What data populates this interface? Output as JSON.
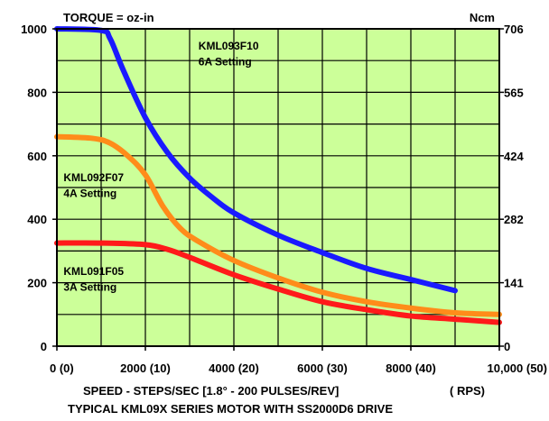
{
  "chart_data": {
    "type": "line",
    "title": "",
    "header_left": "TORQUE = oz-in",
    "header_right": "Ncm",
    "xlabel": "SPEED - STEPS/SEC [1.8° - 200 PULSES/REV]",
    "xlabel_right": "( RPS)",
    "caption": "TYPICAL KML09X SERIES MOTOR WITH SS2000D6 DRIVE",
    "xlim": [
      0,
      10000
    ],
    "ylim": [
      0,
      1000
    ],
    "grid": true,
    "background_color": "#ccff99",
    "x_ticks": [
      {
        "value": 0,
        "label": "0 (0)"
      },
      {
        "value": 2000,
        "label": "2000 (10)"
      },
      {
        "value": 4000,
        "label": "4000 (20)"
      },
      {
        "value": 6000,
        "label": "6000 (30)"
      },
      {
        "value": 8000,
        "label": "8000 (40)"
      },
      {
        "value": 10000,
        "label": "10,000 (50)"
      }
    ],
    "y_ticks_left": [
      {
        "value": 0,
        "label": "0"
      },
      {
        "value": 200,
        "label": "200"
      },
      {
        "value": 400,
        "label": "400"
      },
      {
        "value": 600,
        "label": "600"
      },
      {
        "value": 800,
        "label": "800"
      },
      {
        "value": 1000,
        "label": "1000"
      }
    ],
    "y_ticks_right": [
      {
        "value": 0,
        "label": "0"
      },
      {
        "value": 200,
        "label": "141"
      },
      {
        "value": 400,
        "label": "282"
      },
      {
        "value": 600,
        "label": "424"
      },
      {
        "value": 800,
        "label": "565"
      },
      {
        "value": 1000,
        "label": "706"
      }
    ],
    "series": [
      {
        "id": "kml093",
        "color": "#1a1aff",
        "x": [
          0,
          1000,
          1200,
          1500,
          2000,
          2500,
          3000,
          3500,
          4000,
          5000,
          6000,
          7000,
          8000,
          9000
        ],
        "y": [
          1000,
          995,
          970,
          870,
          720,
          610,
          530,
          470,
          420,
          350,
          295,
          245,
          210,
          175
        ]
      },
      {
        "id": "kml092",
        "color": "#ff8c1a",
        "x": [
          0,
          800,
          1200,
          1600,
          2000,
          2400,
          2800,
          3200,
          4000,
          5000,
          6000,
          7000,
          8000,
          9000,
          10000
        ],
        "y": [
          660,
          655,
          640,
          600,
          540,
          440,
          370,
          330,
          270,
          215,
          170,
          140,
          120,
          105,
          100
        ]
      },
      {
        "id": "kml091",
        "color": "#ff1a1a",
        "x": [
          0,
          1000,
          2000,
          2500,
          3000,
          4000,
          5000,
          6000,
          7000,
          8000,
          9000,
          10000
        ],
        "y": [
          325,
          325,
          320,
          305,
          280,
          225,
          180,
          140,
          115,
          95,
          85,
          75
        ]
      }
    ],
    "annotations": [
      {
        "id": "kml093-name",
        "text": "KML093F10",
        "x": 3200,
        "y": 935
      },
      {
        "id": "kml093-setting",
        "text": "6A Setting",
        "x": 3200,
        "y": 885
      },
      {
        "id": "kml092-name",
        "text": "KML092F07",
        "x": 150,
        "y": 520
      },
      {
        "id": "kml092-setting",
        "text": "4A Setting",
        "x": 150,
        "y": 470
      },
      {
        "id": "kml091-name",
        "text": "KML091F05",
        "x": 150,
        "y": 225
      },
      {
        "id": "kml091-setting",
        "text": "3A Setting",
        "x": 150,
        "y": 175
      }
    ]
  }
}
